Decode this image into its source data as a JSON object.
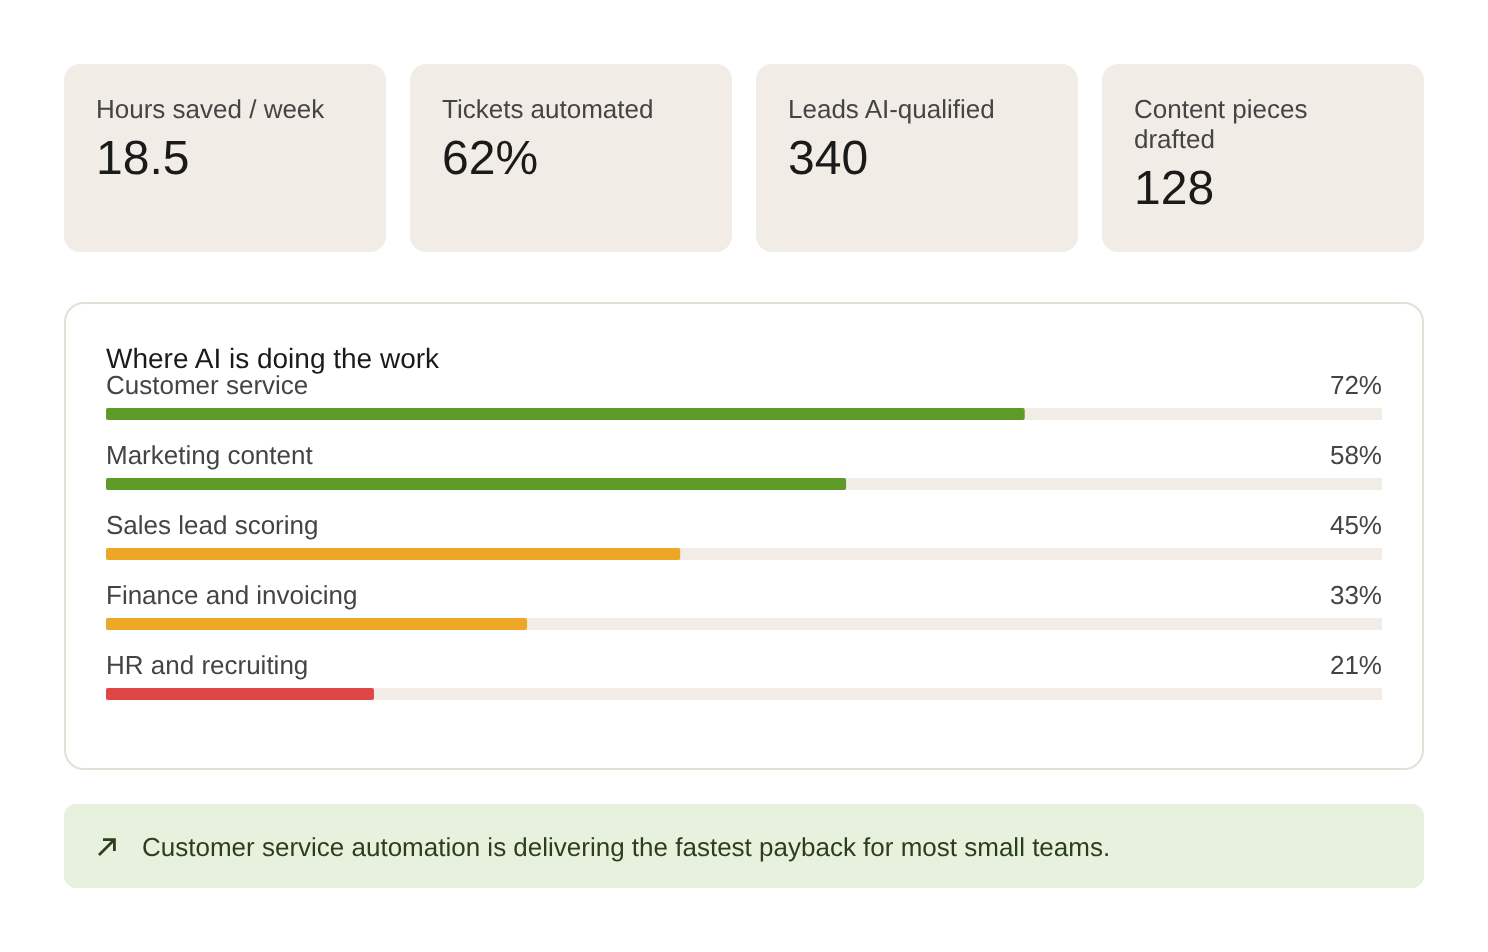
{
  "chart_data": [
    {
      "type": "other",
      "categories": [
        "Hours saved / week",
        "Tickets automated",
        "Leads AI-qualified",
        "Content pieces drafted"
      ],
      "values": [
        18.5,
        62,
        340,
        128
      ],
      "value_labels": [
        "18.5",
        "62%",
        "340",
        "128"
      ]
    },
    {
      "type": "bar",
      "orientation": "horizontal",
      "title": "Where AI is doing the work",
      "categories": [
        "Customer service",
        "Marketing content",
        "Sales lead scoring",
        "Finance and invoicing",
        "HR and recruiting"
      ],
      "values": [
        72,
        58,
        45,
        33,
        21
      ],
      "colors": [
        "#5d9a27",
        "#5d9a27",
        "#eea626",
        "#eea626",
        "#e04646"
      ],
      "value_labels": [
        "72%",
        "58%",
        "45%",
        "33%",
        "21%"
      ],
      "xlim": [
        0,
        100
      ],
      "tick_labels": false,
      "annotations": [
        "Customer service automation is delivering the fastest payback for most small teams."
      ]
    }
  ]
}
